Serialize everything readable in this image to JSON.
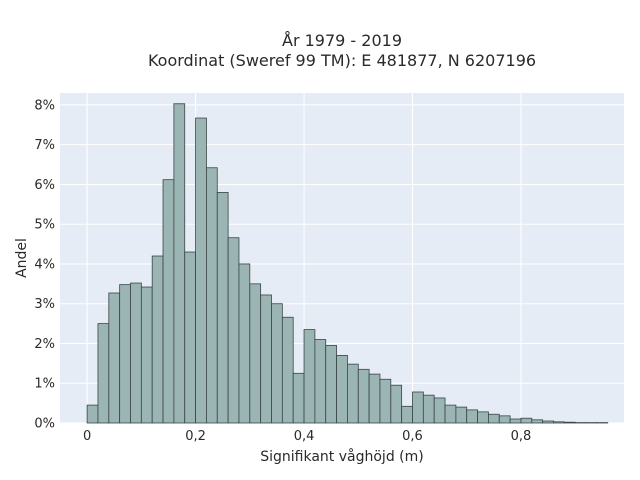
{
  "chart_data": {
    "type": "bar",
    "title_line1": "År 1979 - 2019",
    "title_line2": "Koordinat (Sweref 99 TM): E 481877, N 6207196",
    "xlabel": "Signifikant våghöjd (m)",
    "ylabel": "Andel",
    "bin_width": 0.02,
    "bin_start": 0.0,
    "xlim": [
      -0.05,
      0.99
    ],
    "ylim": [
      0,
      8.3
    ],
    "xticks": [
      0,
      0.2,
      0.4,
      0.6,
      0.8
    ],
    "xtick_labels": [
      "0",
      "0,2",
      "0,4",
      "0,6",
      "0,8"
    ],
    "yticks": [
      0,
      1,
      2,
      3,
      4,
      5,
      6,
      7,
      8
    ],
    "ytick_labels": [
      "0%",
      "1%",
      "2%",
      "3%",
      "4%",
      "5%",
      "6%",
      "7%",
      "8%"
    ],
    "values": [
      0.45,
      2.5,
      3.27,
      3.48,
      3.52,
      3.42,
      4.2,
      6.12,
      8.03,
      4.3,
      7.67,
      6.42,
      5.8,
      4.66,
      4.0,
      3.5,
      3.22,
      3.0,
      2.66,
      1.25,
      2.35,
      2.1,
      1.95,
      1.7,
      1.48,
      1.35,
      1.23,
      1.1,
      0.95,
      0.42,
      0.78,
      0.7,
      0.63,
      0.45,
      0.4,
      0.33,
      0.28,
      0.22,
      0.18,
      0.1,
      0.12,
      0.08,
      0.05,
      0.03,
      0.02,
      0.01,
      0.01,
      0.01
    ]
  },
  "colors": {
    "plot_background": "#e5ecf6",
    "bar_fill": "#9bb4b4",
    "bar_stroke": "#3a4545"
  }
}
